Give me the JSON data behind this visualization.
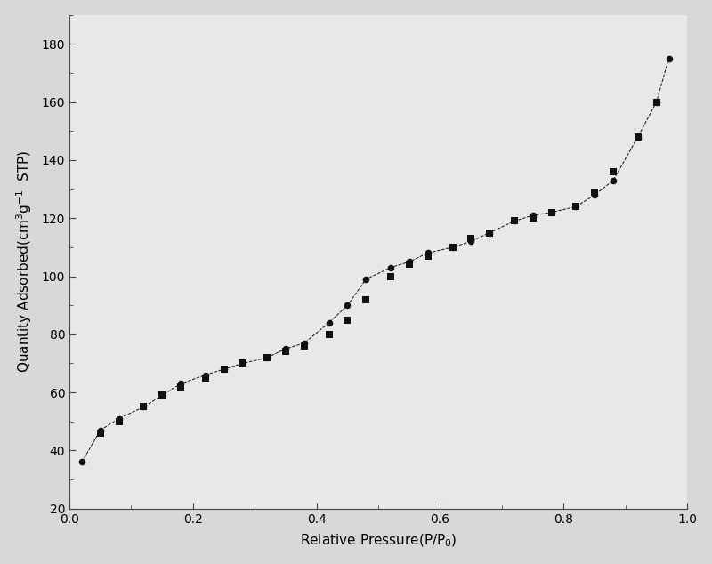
{
  "adsorption_x": [
    0.02,
    0.05,
    0.08,
    0.12,
    0.15,
    0.18,
    0.22,
    0.25,
    0.28,
    0.32,
    0.35,
    0.38,
    0.42,
    0.45,
    0.48,
    0.52,
    0.55,
    0.58,
    0.62,
    0.65,
    0.68,
    0.72,
    0.75,
    0.78,
    0.82,
    0.85,
    0.88,
    0.92,
    0.95,
    0.97
  ],
  "adsorption_y": [
    36,
    47,
    51,
    55,
    59,
    63,
    66,
    68,
    70,
    72,
    75,
    77,
    84,
    90,
    99,
    103,
    105,
    108,
    110,
    112,
    115,
    119,
    121,
    122,
    124,
    128,
    133,
    148,
    160,
    175
  ],
  "desorption_x": [
    0.05,
    0.08,
    0.12,
    0.15,
    0.18,
    0.22,
    0.25,
    0.28,
    0.32,
    0.35,
    0.38,
    0.42,
    0.45,
    0.48,
    0.52,
    0.55,
    0.58,
    0.62,
    0.65,
    0.68,
    0.72,
    0.75,
    0.78,
    0.82,
    0.85,
    0.88,
    0.92,
    0.95
  ],
  "desorption_y": [
    46,
    50,
    55,
    59,
    62,
    65,
    68,
    70,
    72,
    74,
    76,
    80,
    85,
    92,
    100,
    104,
    107,
    110,
    113,
    115,
    119,
    120,
    122,
    124,
    129,
    136,
    148,
    160
  ],
  "xlabel": "Relative Pressure(P/P$_0$)",
  "ylabel": "Quantity Adsorbed(cm$^3$g$^{-1}$  STP)",
  "xlim": [
    0.0,
    1.0
  ],
  "ylim": [
    20,
    190
  ],
  "xticks": [
    0.0,
    0.2,
    0.4,
    0.6,
    0.8,
    1.0
  ],
  "yticks": [
    20,
    40,
    60,
    80,
    100,
    120,
    140,
    160,
    180
  ],
  "bg_color": "#d8d8d8",
  "plot_bg_color": "#e8e8e8",
  "marker_color": "#111111"
}
